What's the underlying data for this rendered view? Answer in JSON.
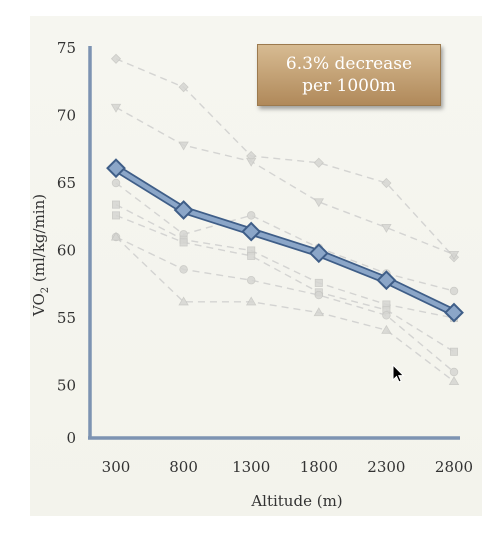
{
  "callout": {
    "line1": "6.3% decrease",
    "line2": "per 1000m"
  },
  "colors": {
    "axis": "#7d93b2",
    "main_series": "#8ba6c8",
    "main_series_outline": "#3f5e88",
    "background_series": "#c8c8c8",
    "callout_top": "#d7bb92",
    "callout_bottom": "#b0895a"
  },
  "chart_data": {
    "type": "line",
    "title": "",
    "xlabel": "Altitude (m)",
    "ylabel": "VO2 (ml/kg/min)",
    "ylabel_main": "VO",
    "ylabel_sub": "2",
    "ylabel_rest": " (ml/kg/min)",
    "x": [
      300,
      800,
      1300,
      1800,
      2300,
      2800
    ],
    "x_tick_labels": [
      "300",
      "800",
      "1300",
      "1800",
      "2300",
      "2800"
    ],
    "y_ticks": [
      0,
      50,
      55,
      60,
      65,
      70,
      75
    ],
    "y_tick_labels": [
      "0",
      "50",
      "55",
      "60",
      "65",
      "70",
      "75"
    ],
    "ylim": [
      48,
      76
    ],
    "y_axis_break": true,
    "grid": false,
    "legend": "none",
    "series": [
      {
        "values": [
          66.1,
          63.0,
          61.4,
          59.8,
          57.8,
          55.4
        ],
        "style": "main",
        "marker": "diamond"
      }
    ],
    "background_series": [
      {
        "values": [
          74.2,
          72.1,
          67.0,
          66.5,
          65.0,
          59.5
        ],
        "marker": "diamond"
      },
      {
        "values": [
          70.6,
          67.8,
          66.6,
          63.6,
          61.7,
          59.7
        ],
        "marker": "triangle-down"
      },
      {
        "values": [
          65.0,
          61.2,
          62.6,
          60.2,
          58.3,
          57.0
        ],
        "marker": "circle"
      },
      {
        "values": [
          63.4,
          60.8,
          60.0,
          57.6,
          56.0,
          55.0
        ],
        "marker": "square"
      },
      {
        "values": [
          62.6,
          60.6,
          59.6,
          56.9,
          55.6,
          52.5
        ],
        "marker": "square"
      },
      {
        "values": [
          61.0,
          58.6,
          57.8,
          56.7,
          55.2,
          51.0
        ],
        "marker": "circle"
      },
      {
        "values": [
          61.0,
          56.2,
          56.2,
          55.4,
          54.1,
          50.3
        ],
        "marker": "triangle-up"
      }
    ]
  }
}
